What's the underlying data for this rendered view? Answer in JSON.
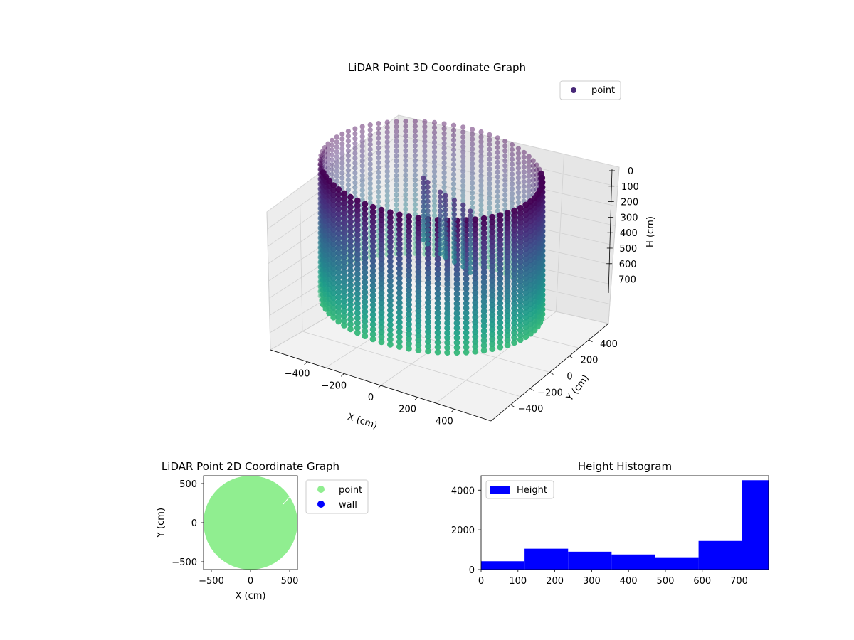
{
  "chart_data": [
    {
      "type": "scatter",
      "title": "LiDAR Point 3D Coordinate Graph",
      "xlabel": "X (cm)",
      "ylabel": "Y (cm)",
      "zlabel": "H (cm)",
      "legend": [
        "point"
      ],
      "legend_position": "top-right",
      "colormap": "viridis",
      "xticks": [
        -400,
        -200,
        0,
        200,
        400
      ],
      "yticks": [
        -400,
        -200,
        0,
        200,
        400
      ],
      "zticks": [
        0,
        100,
        200,
        300,
        400,
        500,
        600,
        700
      ],
      "xlim": [
        -600,
        600
      ],
      "ylim": [
        -600,
        600
      ],
      "zlim": [
        0,
        780
      ],
      "z_inverted": true,
      "shape": "cylindrical wall",
      "radius": 560,
      "height_range": [
        0,
        780
      ],
      "grid": true,
      "series": [
        {
          "name": "point",
          "color": "#482878"
        }
      ]
    },
    {
      "type": "scatter",
      "title": "LiDAR Point 2D Coordinate Graph",
      "xlabel": "X (cm)",
      "ylabel": "Y (cm)",
      "xticks": [
        -500,
        0,
        500
      ],
      "yticks": [
        -500,
        0,
        500
      ],
      "xlim": [
        -600,
        600
      ],
      "ylim": [
        -600,
        600
      ],
      "legend_position": "outside-right",
      "grid": false,
      "series": [
        {
          "name": "point",
          "color": "#90ee90",
          "fill": "disk",
          "radius": 600
        },
        {
          "name": "wall",
          "color": "#0000ff"
        }
      ]
    },
    {
      "type": "bar",
      "title": "Height Histogram",
      "legend": [
        "Height"
      ],
      "legend_position": "top-left",
      "color": "#0000ff",
      "bin_edges": [
        0,
        118,
        236,
        354,
        472,
        590,
        708,
        780
      ],
      "values": [
        420,
        1050,
        900,
        760,
        620,
        1440,
        4500
      ],
      "xticks": [
        0,
        100,
        200,
        300,
        400,
        500,
        600,
        700
      ],
      "yticks": [
        0,
        2000,
        4000
      ],
      "xlim": [
        0,
        780
      ],
      "ylim": [
        0,
        4725
      ],
      "grid": false
    }
  ]
}
